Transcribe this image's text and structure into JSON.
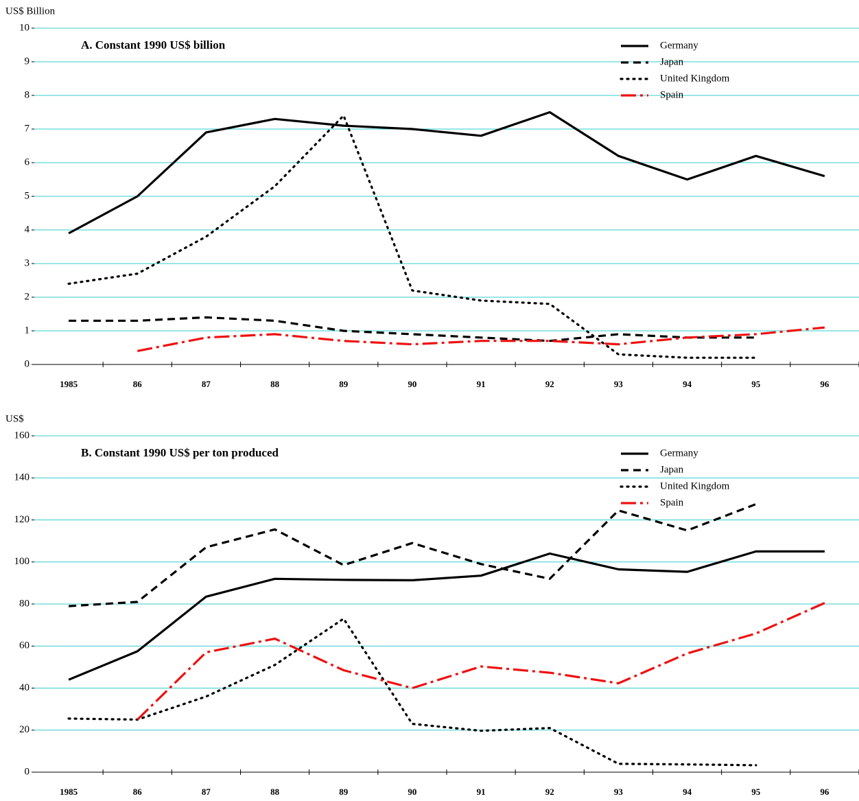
{
  "chart_data": [
    {
      "type": "line",
      "title": "A.  Constant 1990 US$ billion",
      "ylabel": "US$ Billion",
      "categories": [
        "1985",
        "86",
        "87",
        "88",
        "89",
        "90",
        "91",
        "92",
        "93",
        "94",
        "95",
        "96"
      ],
      "ylim": [
        0,
        10
      ],
      "yticks": [
        0,
        1,
        2,
        3,
        4,
        5,
        6,
        7,
        8,
        9,
        10
      ],
      "grid": true,
      "grid_color": "#33cccc",
      "legend": "upper right",
      "series": [
        {
          "name": "Germany",
          "color": "#000000",
          "dash": "solid",
          "values": [
            3.9,
            5.0,
            6.9,
            7.3,
            7.1,
            7.0,
            6.8,
            7.5,
            6.2,
            5.5,
            6.2,
            5.6
          ]
        },
        {
          "name": "Japan",
          "color": "#000000",
          "dash": "dash",
          "values": [
            1.3,
            1.3,
            1.4,
            1.3,
            1.0,
            0.9,
            0.8,
            0.7,
            0.9,
            0.8,
            0.8,
            null
          ]
        },
        {
          "name": "United Kingdom",
          "color": "#000000",
          "dash": "dot",
          "values": [
            2.4,
            2.7,
            3.8,
            5.3,
            7.4,
            2.2,
            1.9,
            1.8,
            0.3,
            0.2,
            0.2,
            null
          ]
        },
        {
          "name": "Spain",
          "color": "#ee1111",
          "dash": "dashdot",
          "values": [
            null,
            0.4,
            0.8,
            0.9,
            0.7,
            0.6,
            0.7,
            0.7,
            0.6,
            0.8,
            0.9,
            1.1
          ]
        }
      ]
    },
    {
      "type": "line",
      "title": "B.  Constant 1990 US$ per ton produced",
      "ylabel": "US$",
      "categories": [
        "1985",
        "86",
        "87",
        "88",
        "89",
        "90",
        "91",
        "92",
        "93",
        "94",
        "95",
        "96"
      ],
      "ylim": [
        0,
        160
      ],
      "yticks": [
        0,
        20,
        40,
        60,
        80,
        100,
        120,
        140,
        160
      ],
      "grid": true,
      "grid_color": "#33cccc",
      "legend": "upper right",
      "series": [
        {
          "name": "Germany",
          "color": "#000000",
          "dash": "solid",
          "values": [
            44,
            57.5,
            83.5,
            92,
            91.5,
            91.3,
            93.5,
            104,
            96.5,
            95.3,
            105,
            105
          ]
        },
        {
          "name": "Japan",
          "color": "#000000",
          "dash": "dash",
          "values": [
            79,
            81,
            107,
            115.5,
            98.5,
            109,
            99,
            92,
            124.5,
            115,
            127.5,
            null
          ]
        },
        {
          "name": "United Kingdom",
          "color": "#000000",
          "dash": "dot",
          "values": [
            25.5,
            25,
            36,
            51,
            73,
            23,
            19.7,
            21,
            4,
            3.7,
            3.3,
            null
          ]
        },
        {
          "name": "Spain",
          "color": "#ee1111",
          "dash": "dashdot",
          "values": [
            null,
            25,
            57,
            63.5,
            48.5,
            40,
            50.3,
            47.3,
            42.3,
            56.5,
            66,
            80.5
          ]
        }
      ]
    }
  ]
}
